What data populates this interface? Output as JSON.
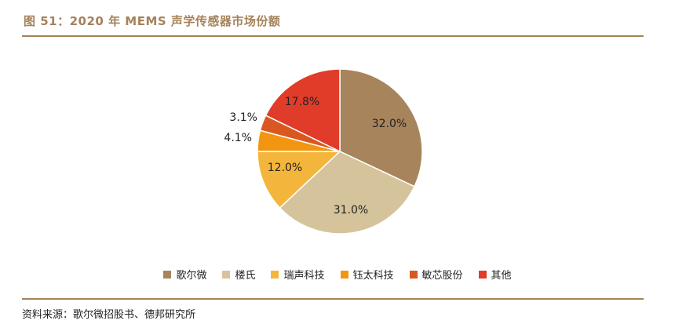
{
  "header": {
    "title": "图 51：2020 年 MEMS 声学传感器市场份额"
  },
  "chart_data": {
    "type": "pie",
    "title": "",
    "start_angle_deg": 0,
    "direction": "clockwise",
    "slices": [
      {
        "name": "歌尔微",
        "value": 32.0,
        "label": "32.0%",
        "color": "#a8845c"
      },
      {
        "name": "楼氏",
        "value": 31.0,
        "label": "31.0%",
        "color": "#d5c49b"
      },
      {
        "name": "瑞声科技",
        "value": 12.0,
        "label": "12.0%",
        "color": "#f4b53c"
      },
      {
        "name": "钰太科技",
        "value": 4.1,
        "label": "4.1%",
        "color": "#f29611"
      },
      {
        "name": "敏芯股份",
        "value": 3.1,
        "label": "3.1%",
        "color": "#d9581f"
      },
      {
        "name": "其他",
        "value": 17.8,
        "label": "17.8%",
        "color": "#e13c2a"
      }
    ],
    "legend_position": "bottom"
  },
  "footer": {
    "source": "资料来源：歌尔微招股书、德邦研究所"
  }
}
